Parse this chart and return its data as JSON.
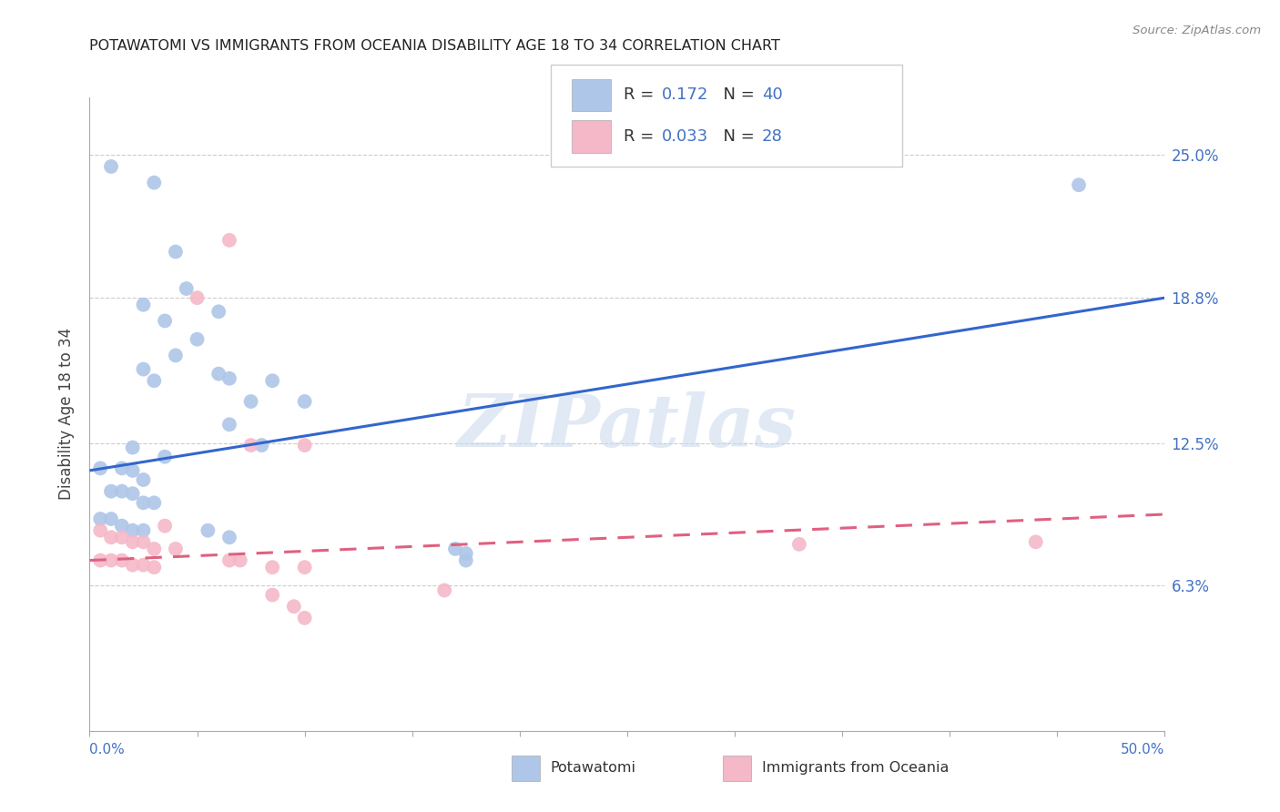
{
  "title": "POTAWATOMI VS IMMIGRANTS FROM OCEANIA DISABILITY AGE 18 TO 34 CORRELATION CHART",
  "source": "Source: ZipAtlas.com",
  "ylabel": "Disability Age 18 to 34",
  "y_ticks": [
    0.063,
    0.125,
    0.188,
    0.25
  ],
  "y_tick_labels": [
    "6.3%",
    "12.5%",
    "18.8%",
    "25.0%"
  ],
  "xmin": 0.0,
  "xmax": 0.5,
  "ymin": 0.0,
  "ymax": 0.275,
  "series1_name": "Potawatomi",
  "series1_R": "0.172",
  "series1_N": "40",
  "series1_color": "#aec6e8",
  "series1_line_color": "#3366cc",
  "series2_name": "Immigrants from Oceania",
  "series2_R": "0.033",
  "series2_N": "28",
  "series2_color": "#f4b8c8",
  "series2_line_color": "#e06080",
  "legend_color": "#4472c4",
  "watermark": "ZIPatlas",
  "blue_scatter": [
    [
      0.01,
      0.245
    ],
    [
      0.03,
      0.238
    ],
    [
      0.04,
      0.208
    ],
    [
      0.045,
      0.192
    ],
    [
      0.025,
      0.185
    ],
    [
      0.035,
      0.178
    ],
    [
      0.06,
      0.182
    ],
    [
      0.05,
      0.17
    ],
    [
      0.04,
      0.163
    ],
    [
      0.025,
      0.157
    ],
    [
      0.03,
      0.152
    ],
    [
      0.06,
      0.155
    ],
    [
      0.065,
      0.153
    ],
    [
      0.085,
      0.152
    ],
    [
      0.075,
      0.143
    ],
    [
      0.1,
      0.143
    ],
    [
      0.065,
      0.133
    ],
    [
      0.08,
      0.124
    ],
    [
      0.02,
      0.123
    ],
    [
      0.035,
      0.119
    ],
    [
      0.005,
      0.114
    ],
    [
      0.015,
      0.114
    ],
    [
      0.02,
      0.113
    ],
    [
      0.025,
      0.109
    ],
    [
      0.01,
      0.104
    ],
    [
      0.015,
      0.104
    ],
    [
      0.02,
      0.103
    ],
    [
      0.025,
      0.099
    ],
    [
      0.03,
      0.099
    ],
    [
      0.005,
      0.092
    ],
    [
      0.01,
      0.092
    ],
    [
      0.015,
      0.089
    ],
    [
      0.02,
      0.087
    ],
    [
      0.025,
      0.087
    ],
    [
      0.055,
      0.087
    ],
    [
      0.065,
      0.084
    ],
    [
      0.17,
      0.079
    ],
    [
      0.175,
      0.077
    ],
    [
      0.175,
      0.074
    ],
    [
      0.46,
      0.237
    ]
  ],
  "pink_scatter": [
    [
      0.065,
      0.213
    ],
    [
      0.05,
      0.188
    ],
    [
      0.075,
      0.124
    ],
    [
      0.1,
      0.124
    ],
    [
      0.035,
      0.089
    ],
    [
      0.005,
      0.087
    ],
    [
      0.01,
      0.084
    ],
    [
      0.015,
      0.084
    ],
    [
      0.02,
      0.082
    ],
    [
      0.025,
      0.082
    ],
    [
      0.03,
      0.079
    ],
    [
      0.04,
      0.079
    ],
    [
      0.005,
      0.074
    ],
    [
      0.01,
      0.074
    ],
    [
      0.015,
      0.074
    ],
    [
      0.02,
      0.072
    ],
    [
      0.025,
      0.072
    ],
    [
      0.03,
      0.071
    ],
    [
      0.065,
      0.074
    ],
    [
      0.07,
      0.074
    ],
    [
      0.085,
      0.071
    ],
    [
      0.1,
      0.071
    ],
    [
      0.085,
      0.059
    ],
    [
      0.095,
      0.054
    ],
    [
      0.1,
      0.049
    ],
    [
      0.165,
      0.061
    ],
    [
      0.33,
      0.081
    ],
    [
      0.44,
      0.082
    ]
  ],
  "blue_line_x": [
    0.0,
    0.5
  ],
  "blue_line_y": [
    0.113,
    0.188
  ],
  "pink_line_x": [
    0.0,
    0.5
  ],
  "pink_line_y": [
    0.074,
    0.094
  ]
}
